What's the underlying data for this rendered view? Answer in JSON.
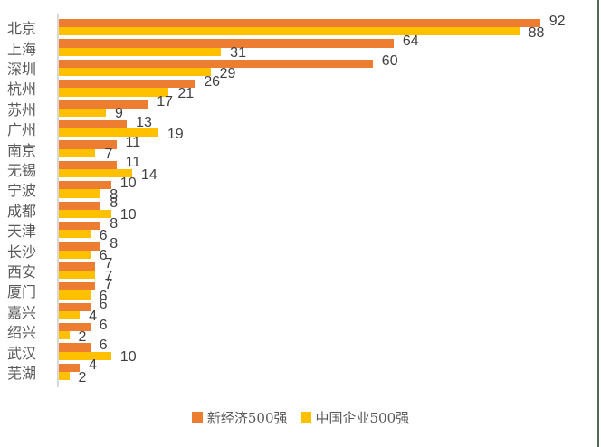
{
  "chart_data": {
    "type": "bar",
    "orientation": "horizontal",
    "title": "",
    "xlabel": "",
    "ylabel": "",
    "xlim": [
      0,
      100
    ],
    "grid": false,
    "data_labels": true,
    "legend_position": "bottom",
    "categories": [
      "北京",
      "上海",
      "深圳",
      "杭州",
      "苏州",
      "广州",
      "南京",
      "无锡",
      "宁波",
      "成都",
      "天津",
      "长沙",
      "西安",
      "厦门",
      "嘉兴",
      "绍兴",
      "武汉",
      "芜湖"
    ],
    "series": [
      {
        "name": "新经济500强",
        "color": "#ED7D31",
        "values": [
          92,
          64,
          60,
          26,
          17,
          13,
          11,
          11,
          10,
          8,
          8,
          8,
          7,
          7,
          6,
          6,
          6,
          4
        ]
      },
      {
        "name": "中国企业500强",
        "color": "#FFC000",
        "values": [
          88,
          31,
          29,
          21,
          9,
          19,
          7,
          14,
          8,
          10,
          6,
          6,
          7,
          6,
          4,
          2,
          10,
          2
        ]
      }
    ]
  },
  "colors": {
    "axis_line": "#D9D9D9",
    "category_label": "#595959",
    "value_label": "#404040",
    "right_edge_line": "#4E6B51",
    "background": "#FFFFFF"
  }
}
